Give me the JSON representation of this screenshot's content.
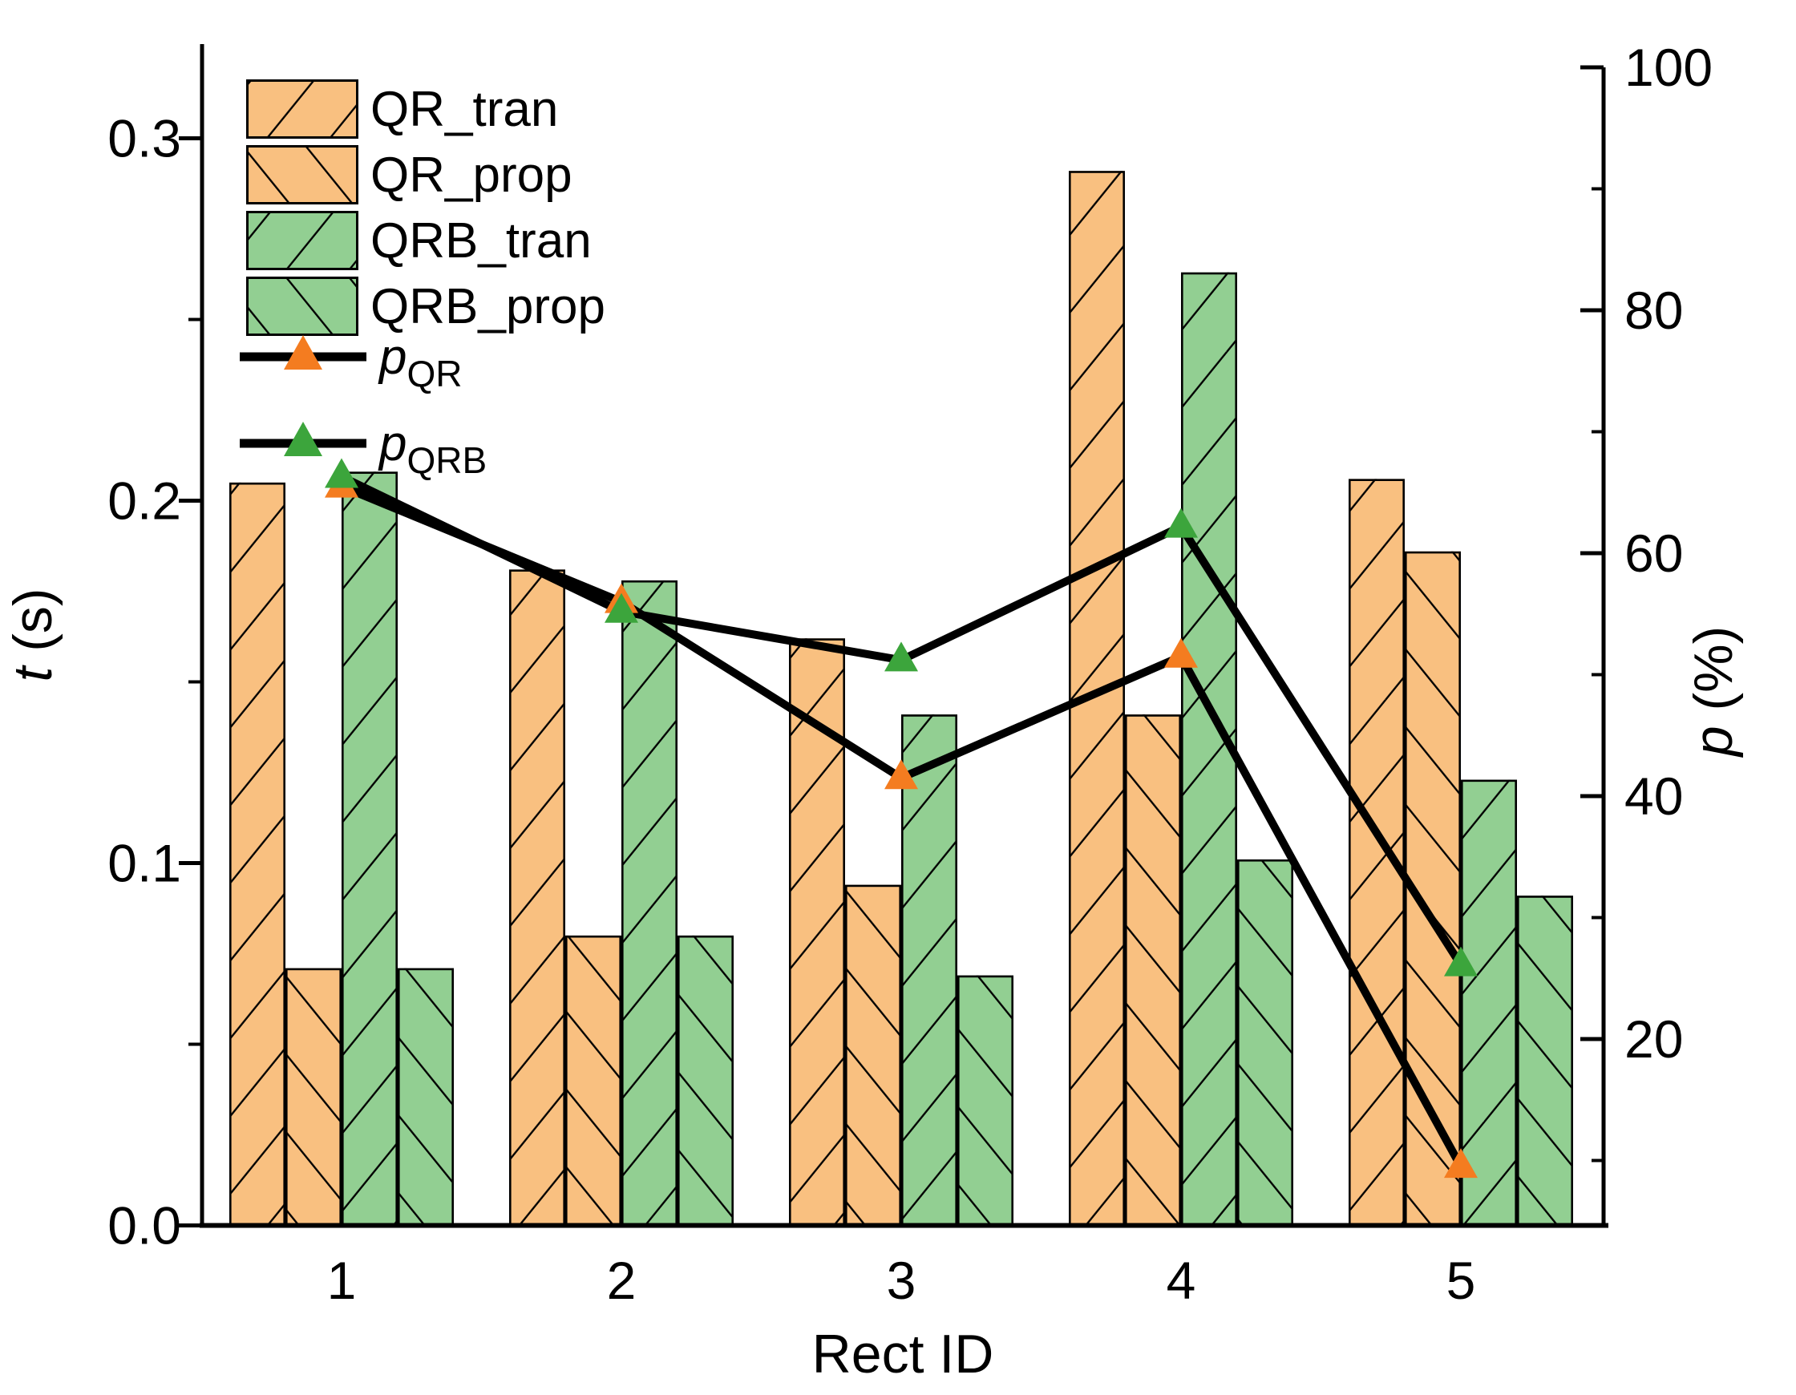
{
  "chart_data": {
    "type": "bar",
    "combo": "grouped bars on left axis with two marker lines on right axis",
    "categories": [
      "1",
      "2",
      "3",
      "4",
      "5"
    ],
    "bar_series": [
      {
        "name": "QR_tran",
        "color_key": "orange",
        "hatch": "forward",
        "values": [
          0.205,
          0.181,
          0.162,
          0.291,
          0.206
        ]
      },
      {
        "name": "QR_prop",
        "color_key": "orange",
        "hatch": "backward",
        "values": [
          0.071,
          0.08,
          0.094,
          0.141,
          0.186
        ]
      },
      {
        "name": "QRB_tran",
        "color_key": "green",
        "hatch": "forward",
        "values": [
          0.208,
          0.178,
          0.141,
          0.263,
          0.123
        ]
      },
      {
        "name": "QRB_prop",
        "color_key": "green",
        "hatch": "backward",
        "values": [
          0.071,
          0.08,
          0.069,
          0.101,
          0.091
        ]
      }
    ],
    "line_series": [
      {
        "name_prefix": "p",
        "name_sub": "QR",
        "marker_color": "#F47C20",
        "values": [
          65.5,
          56.0,
          41.5,
          51.5,
          9.5
        ]
      },
      {
        "name_prefix": "p",
        "name_sub": "QRB",
        "marker_color": "#3CA53C",
        "values": [
          66.3,
          55.2,
          51.2,
          62.2,
          26.1
        ]
      }
    ],
    "xlabel": "Rect ID",
    "ylabel_left": {
      "italic": "t",
      "rest": " (s)"
    },
    "ylabel_right": {
      "italic": "p",
      "rest": " (%)"
    },
    "left_axis": {
      "min": 0.0,
      "max": 0.32,
      "major_ticks": [
        0.0,
        0.1,
        0.2,
        0.3
      ],
      "tick_labels": [
        "0.0",
        "0.1",
        "0.2",
        "0.3"
      ],
      "minor_ticks": [
        0.05,
        0.15,
        0.25
      ]
    },
    "right_axis": {
      "min": 4.7,
      "max": 100,
      "major_ticks": [
        20,
        40,
        60,
        80,
        100
      ],
      "tick_labels": [
        "20",
        "40",
        "60",
        "80",
        "100"
      ],
      "minor_ticks": [
        10,
        30,
        50,
        70,
        90
      ]
    },
    "legend_position": "top-left inside plot",
    "grid": "off",
    "colors": {
      "orange": "#F9C080",
      "green": "#92CF92",
      "line": "#000000",
      "background": "#ffffff"
    }
  }
}
